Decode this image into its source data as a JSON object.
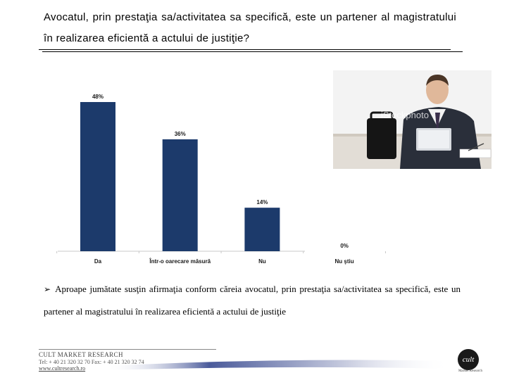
{
  "header": {
    "question": "Avocatul, prin prestaţia sa/activitatea sa specifică, este un partener al magistratului în realizarea eficientă a actului de justiţie?"
  },
  "chart_data": {
    "type": "bar",
    "categories": [
      "Da",
      "Într-o oarecare măsură",
      "Nu",
      "Nu ştiu"
    ],
    "values": [
      48,
      36,
      14,
      0
    ],
    "value_labels": [
      "48%",
      "36%",
      "14%",
      "0%"
    ],
    "ylim": [
      0,
      48
    ],
    "bar_color": "#1c3a6b",
    "grid": false,
    "legend": "none"
  },
  "photo": {
    "watermark": "iStockphoto"
  },
  "summary": {
    "text": "Aproape jumătate susţin afirmaţia conform căreia avocatul, prin prestaţia sa/activitatea sa specifică, este un partener al magistratului în realizarea eficientă a actului de justiţie"
  },
  "footer": {
    "company": "CULT MARKET RESEARCH",
    "contact": "Tel: + 40 21 320 32 70  Fax: + 40 21 320 32 74",
    "website": "www.cultresearch.ro",
    "logo_text": "cult",
    "logo_caption": "Market Research"
  }
}
